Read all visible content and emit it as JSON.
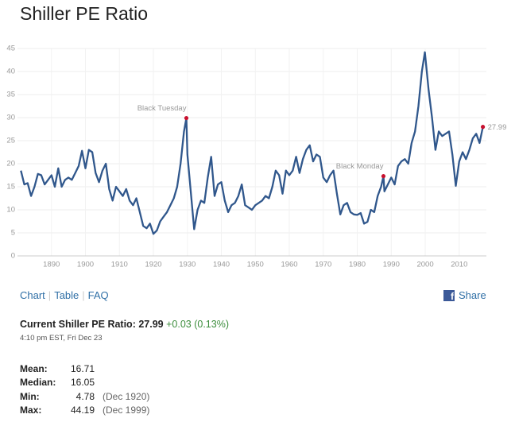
{
  "title": "Shiller PE Ratio",
  "chart_data": {
    "type": "line",
    "color": "#30578c",
    "grid": true,
    "xlim": [
      1880,
      2018
    ],
    "ylim": [
      0,
      45
    ],
    "xticks": [
      1890,
      1900,
      1910,
      1920,
      1930,
      1940,
      1950,
      1960,
      1970,
      1980,
      1990,
      2000,
      2010
    ],
    "yticks": [
      0,
      5,
      10,
      15,
      20,
      25,
      30,
      35,
      40,
      45
    ],
    "x": [
      1881,
      1882,
      1883,
      1884,
      1885,
      1886,
      1887,
      1888,
      1889,
      1890,
      1891,
      1892,
      1893,
      1894,
      1895,
      1896,
      1897,
      1898,
      1899,
      1900,
      1901,
      1902,
      1903,
      1904,
      1905,
      1906,
      1907,
      1908,
      1909,
      1910,
      1911,
      1912,
      1913,
      1914,
      1915,
      1916,
      1917,
      1918,
      1919,
      1920,
      1921,
      1922,
      1923,
      1924,
      1925,
      1926,
      1927,
      1928,
      1929,
      1929.7,
      1930,
      1931,
      1932,
      1933,
      1934,
      1935,
      1936,
      1937,
      1938,
      1939,
      1940,
      1941,
      1942,
      1943,
      1944,
      1945,
      1946,
      1947,
      1948,
      1949,
      1950,
      1951,
      1952,
      1953,
      1954,
      1955,
      1956,
      1957,
      1958,
      1959,
      1960,
      1961,
      1962,
      1963,
      1964,
      1965,
      1966,
      1967,
      1968,
      1969,
      1970,
      1971,
      1972,
      1973,
      1974,
      1975,
      1976,
      1977,
      1978,
      1979,
      1980,
      1981,
      1982,
      1983,
      1984,
      1985,
      1986,
      1987,
      1987.7,
      1988,
      1989,
      1990,
      1991,
      1992,
      1993,
      1994,
      1995,
      1996,
      1997,
      1998,
      1999,
      1999.9,
      2000,
      2001,
      2002,
      2003,
      2004,
      2005,
      2006,
      2007,
      2008,
      2009,
      2010,
      2011,
      2012,
      2013,
      2014,
      2015,
      2016,
      2016.97
    ],
    "values": [
      18.5,
      15.5,
      15.8,
      13,
      15,
      17.8,
      17.5,
      15.5,
      16.5,
      17.5,
      15,
      19,
      15,
      16.5,
      17,
      16.5,
      18,
      19.5,
      22.8,
      19,
      23,
      22.5,
      18,
      16,
      18.5,
      20,
      14.5,
      12,
      15,
      14,
      13,
      14.5,
      12,
      11,
      12.5,
      9.5,
      6.5,
      6,
      7,
      4.78,
      5.5,
      7.5,
      8.5,
      9.5,
      11,
      12.5,
      15,
      20,
      27,
      29.9,
      22,
      14,
      5.8,
      10,
      12,
      11.5,
      17,
      21.5,
      13,
      15.5,
      16,
      12,
      9.5,
      11,
      11.5,
      13,
      15.5,
      11,
      10.5,
      10,
      11,
      11.5,
      12,
      13,
      12.5,
      15,
      18.5,
      17.5,
      13.5,
      18.5,
      17.5,
      18.5,
      21.5,
      18,
      21,
      23,
      24,
      20.5,
      22,
      21.5,
      17,
      16,
      17.5,
      18.5,
      13.5,
      9,
      11,
      11.5,
      9.5,
      9,
      8.9,
      9.3,
      7,
      7.4,
      10,
      9.5,
      13,
      15,
      17.3,
      14,
      15.5,
      17,
      15.5,
      19.5,
      20.5,
      21,
      20,
      24.5,
      27,
      32.5,
      40,
      44.19,
      43.5,
      36,
      30,
      23,
      27,
      26,
      26.5,
      27,
      22,
      15.2,
      20.5,
      22.5,
      21,
      23,
      25.5,
      26.5,
      24.5,
      27.99
    ],
    "annotations": [
      {
        "text": "Black Tuesday",
        "x": 1929.7,
        "y": 29.9
      },
      {
        "text": "Black Monday",
        "x": 1987.7,
        "y": 17.3
      }
    ],
    "last": {
      "x": 2016.97,
      "value": 27.99
    },
    "marker_color": "#c8102e"
  },
  "nav": [
    "Chart",
    "Table",
    "FAQ"
  ],
  "share": "Share",
  "current": {
    "label": "Current Shiller PE Ratio:",
    "value": "27.99",
    "change": "+0.03 (0.13%)",
    "time": "4:10 pm EST, Fri Dec 23"
  },
  "stats": [
    [
      "Mean:",
      "16.71"
    ],
    [
      "Median:",
      "16.05"
    ],
    [
      "Min:",
      "4.78",
      "(Dec 1920)"
    ],
    [
      "Max:",
      "44.19",
      "(Dec 1999)"
    ]
  ]
}
